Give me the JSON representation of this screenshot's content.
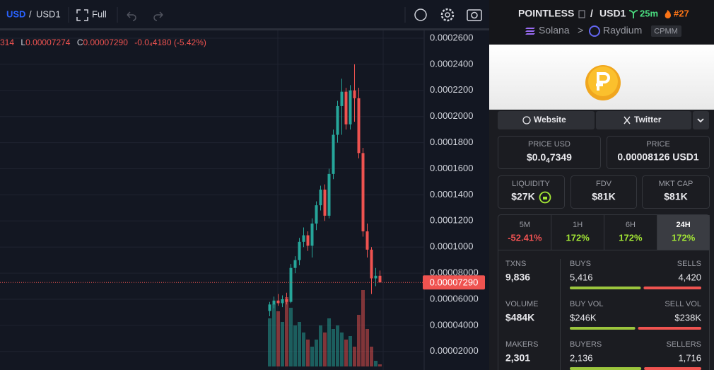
{
  "toolbar": {
    "base": "USD",
    "separator": "/",
    "quote": "USD1",
    "full": "Full"
  },
  "legend": {
    "open_cut": "314",
    "low_label": "L",
    "low": "0.00007274",
    "close_label": "C",
    "close": "0.00007290",
    "change": "-0.0₄4180 (-5.42%)"
  },
  "chart_data": {
    "type": "candlestick",
    "up_color": "#26a69a",
    "down_color": "#ef5350",
    "ylim": [
      5.8e-06,
      0.0002665
    ],
    "yticks": [
      {
        "value": 0.00026,
        "label": "0.0002600"
      },
      {
        "value": 0.00024,
        "label": "0.0002400"
      },
      {
        "value": 0.00022,
        "label": "0.0002200"
      },
      {
        "value": 0.0002,
        "label": "0.0002000"
      },
      {
        "value": 0.00018,
        "label": "0.0001800"
      },
      {
        "value": 0.00016,
        "label": "0.0001600"
      },
      {
        "value": 0.00014,
        "label": "0.0001400"
      },
      {
        "value": 0.00012,
        "label": "0.0001200"
      },
      {
        "value": 0.0001,
        "label": "0.0001000"
      },
      {
        "value": 8e-05,
        "label": "0.00008000"
      },
      {
        "value": 6e-05,
        "label": "0.00006000"
      },
      {
        "value": 4e-05,
        "label": "0.00004000"
      },
      {
        "value": 2e-05,
        "label": "0.00002000"
      }
    ],
    "last_price": {
      "value": 7.29e-05,
      "label": "0.00007290"
    },
    "candles": [
      {
        "o": 5.1e-05,
        "h": 5.8e-05,
        "l": 4.7e-05,
        "c": 5.6e-05
      },
      {
        "o": 5.6e-05,
        "h": 6.2e-05,
        "l": 5.3e-05,
        "c": 5.9e-05
      },
      {
        "o": 5.9e-05,
        "h": 6.4e-05,
        "l": 5.5e-05,
        "c": 5.7e-05
      },
      {
        "o": 5.7e-05,
        "h": 6.3e-05,
        "l": 5.4e-05,
        "c": 6e-05
      },
      {
        "o": 6e-05,
        "h": 6.5e-05,
        "l": 5.6e-05,
        "c": 5.8e-05
      },
      {
        "o": 5.8e-05,
        "h": 8.7e-05,
        "l": 5.7e-05,
        "c": 8.4e-05
      },
      {
        "o": 8.4e-05,
        "h": 9.3e-05,
        "l": 8e-05,
        "c": 9e-05
      },
      {
        "o": 9e-05,
        "h": 0.000107,
        "l": 8.6e-05,
        "c": 0.000104
      },
      {
        "o": 0.000104,
        "h": 0.000115,
        "l": 0.0001,
        "c": 0.000109
      },
      {
        "o": 0.000109,
        "h": 0.000112,
        "l": 9.7e-05,
        "c": 0.000101
      },
      {
        "o": 0.000101,
        "h": 0.000122,
        "l": 9.2e-05,
        "c": 0.000118
      },
      {
        "o": 0.000118,
        "h": 0.000135,
        "l": 0.000113,
        "c": 0.000132
      },
      {
        "o": 0.000132,
        "h": 0.000147,
        "l": 0.000128,
        "c": 0.000144
      },
      {
        "o": 0.000144,
        "h": 0.000148,
        "l": 0.00012,
        "c": 0.000124
      },
      {
        "o": 0.000124,
        "h": 0.00016,
        "l": 0.000122,
        "c": 0.000156
      },
      {
        "o": 0.000156,
        "h": 0.00019,
        "l": 0.000152,
        "c": 0.000186
      },
      {
        "o": 0.000186,
        "h": 0.000212,
        "l": 0.00018,
        "c": 0.000208
      },
      {
        "o": 0.000208,
        "h": 0.000229,
        "l": 0.000186,
        "c": 0.000219
      },
      {
        "o": 0.000219,
        "h": 0.000222,
        "l": 0.00019,
        "c": 0.000194
      },
      {
        "o": 0.000194,
        "h": 0.000224,
        "l": 0.00019,
        "c": 0.00022
      },
      {
        "o": 0.00022,
        "h": 0.00024,
        "l": 0.000196,
        "c": 0.000214
      },
      {
        "o": 0.000214,
        "h": 0.000222,
        "l": 0.000168,
        "c": 0.000172
      },
      {
        "o": 0.000172,
        "h": 0.000176,
        "l": 0.000108,
        "c": 0.000112
      },
      {
        "o": 0.000112,
        "h": 0.000118,
        "l": 9.2e-05,
        "c": 9.8e-05
      },
      {
        "o": 9.8e-05,
        "h": 0.0001,
        "l": 6.4e-05,
        "c": 7.6e-05
      },
      {
        "o": 7.6e-05,
        "h": 8.4e-05,
        "l": 7e-05,
        "c": 7.8e-05
      },
      {
        "o": 7.8e-05,
        "h": 8.2e-05,
        "l": 7.274e-05,
        "c": 7.29e-05
      }
    ],
    "volumes": [
      68,
      88,
      78,
      63,
      98,
      83,
      58,
      63,
      48,
      38,
      28,
      38,
      58,
      48,
      68,
      53,
      58,
      48,
      38,
      43,
      28,
      73,
      108,
      53,
      28,
      8,
      3
    ]
  },
  "panel": {
    "header": {
      "token": "POINTLESS",
      "separator": "/",
      "quote": "USD1",
      "age": "25m",
      "rank": "#27",
      "chain": "Solana",
      "arrow": ">",
      "dex": "Raydium",
      "tag": "CPMM"
    },
    "links": {
      "website": "Website",
      "twitter": "Twitter"
    },
    "price_usd": {
      "label": "PRICE USD",
      "prefix": "$0.0",
      "sub": "4",
      "suffix": "7349"
    },
    "price": {
      "label": "PRICE",
      "value": "0.00008126 USD1"
    },
    "liquidity": {
      "label": "LIQUIDITY",
      "value": "$27K"
    },
    "fdv": {
      "label": "FDV",
      "value": "$81K"
    },
    "mkt_cap": {
      "label": "MKT CAP",
      "value": "$81K"
    },
    "tabs": [
      {
        "label": "5M",
        "value": "-52.41%"
      },
      {
        "label": "1H",
        "value": "172%"
      },
      {
        "label": "6H",
        "value": "172%"
      },
      {
        "label": "24H",
        "value": "172%"
      }
    ],
    "stats": [
      {
        "label": "TXNS",
        "value": "9,836",
        "left_label": "BUYS",
        "left": "5,416",
        "right_label": "SELLS",
        "right": "4,420"
      },
      {
        "label": "VOLUME",
        "value": "$484K",
        "left_label": "BUY VOL",
        "left": "$246K",
        "right_label": "SELL VOL",
        "right": "$238K"
      },
      {
        "label": "MAKERS",
        "value": "2,301",
        "left_label": "BUYERS",
        "left": "2,136",
        "right_label": "SELLERS",
        "right": "1,716"
      }
    ]
  }
}
